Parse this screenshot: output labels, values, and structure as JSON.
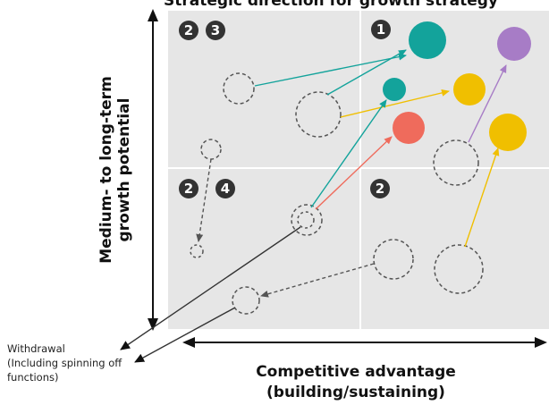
{
  "colors": {
    "quadrant_bg": "#e6e6e6",
    "divider": "#ffffff",
    "teal": "#13a39b",
    "gold": "#f0bf00",
    "purple": "#a77cc6",
    "coral": "#ef6b5c",
    "gray_dash": "#555555",
    "badge": "#333333"
  },
  "labels": {
    "y_axis_line1": "Medium- to long-term",
    "y_axis_line2": "growth potential",
    "x_axis_line1": "Competitive advantage",
    "x_axis_line2": "(building/sustaining)",
    "withdrawal_line1": "Withdrawal",
    "withdrawal_line2": "(Including spinning off",
    "withdrawal_line3": "functions)"
  },
  "badges": {
    "top_left_a": "2",
    "top_left_b": "3",
    "top_right": "1",
    "mid_left_a": "2",
    "mid_left_b": "4",
    "mid_right": "2"
  }
}
